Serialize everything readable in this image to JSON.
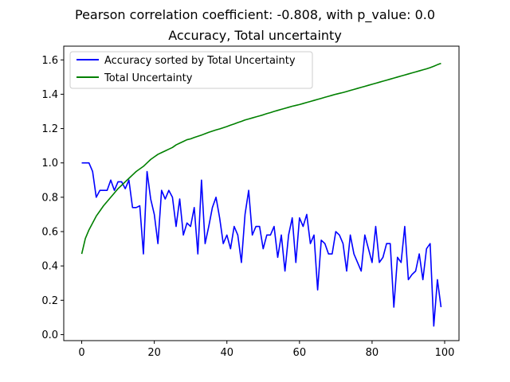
{
  "chart_data": {
    "type": "line",
    "title": "Pearson correlation coefficient: -0.808, with p_value: 0.0",
    "subtitle": "Accuracy, Total uncertainty",
    "xlabel": "",
    "ylabel": "",
    "xlim": [
      -4.95,
      103.95
    ],
    "ylim": [
      -0.035,
      1.68
    ],
    "x_ticks": [
      "0",
      "20",
      "40",
      "60",
      "80",
      "100"
    ],
    "y_ticks": [
      "0.0",
      "0.2",
      "0.4",
      "0.6",
      "0.8",
      "1.0",
      "1.2",
      "1.4",
      "1.6"
    ],
    "grid": false,
    "legend_position": "top-left",
    "series": [
      {
        "name": "Accuracy sorted by Total Uncertainty",
        "color": "#0000ff",
        "values": [
          1.0,
          1.0,
          1.0,
          0.95,
          0.8,
          0.84,
          0.84,
          0.84,
          0.9,
          0.84,
          0.89,
          0.89,
          0.85,
          0.9,
          0.74,
          0.74,
          0.75,
          0.47,
          0.95,
          0.79,
          0.7,
          0.53,
          0.84,
          0.79,
          0.84,
          0.8,
          0.63,
          0.79,
          0.58,
          0.65,
          0.63,
          0.74,
          0.47,
          0.9,
          0.53,
          0.63,
          0.74,
          0.8,
          0.68,
          0.53,
          0.58,
          0.5,
          0.63,
          0.58,
          0.42,
          0.7,
          0.84,
          0.58,
          0.63,
          0.63,
          0.5,
          0.58,
          0.58,
          0.63,
          0.45,
          0.58,
          0.37,
          0.58,
          0.68,
          0.42,
          0.68,
          0.63,
          0.7,
          0.53,
          0.58,
          0.26,
          0.55,
          0.53,
          0.47,
          0.47,
          0.6,
          0.58,
          0.53,
          0.37,
          0.58,
          0.47,
          0.42,
          0.37,
          0.58,
          0.5,
          0.42,
          0.63,
          0.42,
          0.45,
          0.53,
          0.53,
          0.16,
          0.45,
          0.42,
          0.63,
          0.32,
          0.35,
          0.37,
          0.47,
          0.32,
          0.5,
          0.53,
          0.05,
          0.32,
          0.16
        ]
      },
      {
        "name": "Total Uncertainty",
        "color": "#008000",
        "values": [
          0.47,
          0.56,
          0.61,
          0.65,
          0.69,
          0.72,
          0.75,
          0.775,
          0.8,
          0.825,
          0.85,
          0.87,
          0.89,
          0.91,
          0.93,
          0.95,
          0.965,
          0.98,
          1.0,
          1.02,
          1.035,
          1.05,
          1.06,
          1.07,
          1.08,
          1.09,
          1.105,
          1.115,
          1.125,
          1.135,
          1.14,
          1.148,
          1.155,
          1.162,
          1.17,
          1.178,
          1.185,
          1.192,
          1.198,
          1.205,
          1.212,
          1.22,
          1.227,
          1.235,
          1.242,
          1.25,
          1.256,
          1.262,
          1.268,
          1.274,
          1.28,
          1.287,
          1.293,
          1.3,
          1.306,
          1.312,
          1.318,
          1.324,
          1.33,
          1.335,
          1.34,
          1.346,
          1.352,
          1.358,
          1.364,
          1.37,
          1.376,
          1.382,
          1.388,
          1.394,
          1.4,
          1.405,
          1.41,
          1.416,
          1.422,
          1.428,
          1.434,
          1.44,
          1.446,
          1.452,
          1.458,
          1.464,
          1.47,
          1.476,
          1.482,
          1.488,
          1.494,
          1.5,
          1.506,
          1.512,
          1.518,
          1.524,
          1.53,
          1.536,
          1.542,
          1.548,
          1.555,
          1.563,
          1.572,
          1.58
        ]
      }
    ]
  }
}
